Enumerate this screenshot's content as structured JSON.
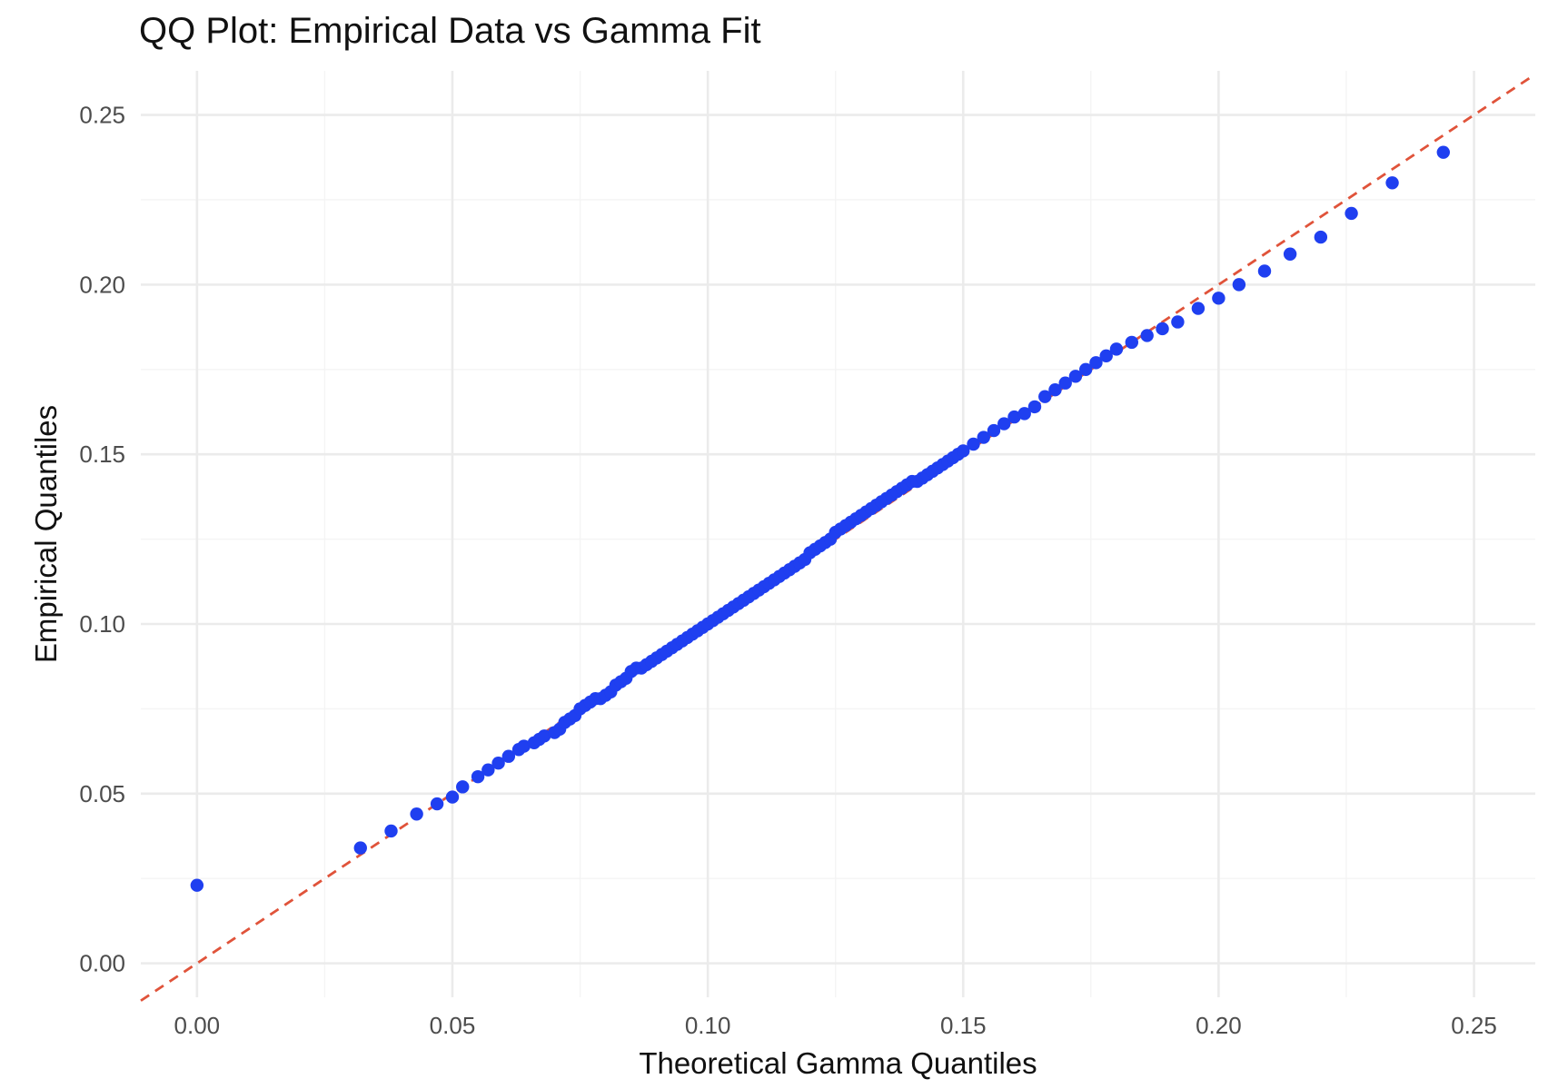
{
  "chart_data": {
    "type": "scatter",
    "title": "QQ Plot: Empirical Data vs Gamma Fit",
    "xlabel": "Theoretical Gamma Quantiles",
    "ylabel": "Empirical Quantiles",
    "xlim": [
      -0.011,
      0.262
    ],
    "ylim": [
      -0.01,
      0.263
    ],
    "xticks": [
      "0.00",
      "0.05",
      "0.10",
      "0.15",
      "0.20",
      "0.25"
    ],
    "yticks": [
      "0.00",
      "0.05",
      "0.10",
      "0.15",
      "0.20",
      "0.25"
    ],
    "grid": true,
    "legend": "none",
    "point_color": "#1f3ff0",
    "reference_line": {
      "style": "dashed",
      "color": "#e0533a",
      "intercept": 0,
      "slope": 1
    },
    "series": [
      {
        "x": [
          0.0,
          0.032,
          0.038,
          0.043,
          0.047,
          0.05,
          0.052,
          0.055,
          0.057,
          0.059,
          0.061,
          0.063,
          0.064,
          0.066,
          0.067,
          0.068,
          0.07,
          0.071,
          0.072,
          0.073,
          0.074,
          0.075,
          0.076,
          0.077,
          0.078,
          0.079,
          0.08,
          0.081,
          0.082,
          0.083,
          0.084,
          0.085,
          0.086,
          0.087,
          0.088,
          0.089,
          0.09,
          0.091,
          0.092,
          0.093,
          0.094,
          0.095,
          0.096,
          0.097,
          0.098,
          0.099,
          0.1,
          0.101,
          0.102,
          0.103,
          0.104,
          0.105,
          0.106,
          0.107,
          0.108,
          0.109,
          0.11,
          0.111,
          0.112,
          0.113,
          0.114,
          0.115,
          0.116,
          0.117,
          0.118,
          0.119,
          0.12,
          0.121,
          0.122,
          0.123,
          0.124,
          0.125,
          0.126,
          0.127,
          0.128,
          0.129,
          0.13,
          0.131,
          0.132,
          0.133,
          0.134,
          0.135,
          0.136,
          0.137,
          0.138,
          0.139,
          0.14,
          0.141,
          0.142,
          0.143,
          0.144,
          0.145,
          0.146,
          0.147,
          0.148,
          0.149,
          0.15,
          0.152,
          0.154,
          0.156,
          0.158,
          0.16,
          0.162,
          0.164,
          0.166,
          0.168,
          0.17,
          0.172,
          0.174,
          0.176,
          0.178,
          0.18,
          0.183,
          0.186,
          0.189,
          0.192,
          0.196,
          0.2,
          0.204,
          0.209,
          0.214,
          0.22,
          0.226,
          0.234,
          0.244
        ],
        "y": [
          0.023,
          0.034,
          0.039,
          0.044,
          0.047,
          0.049,
          0.052,
          0.055,
          0.057,
          0.059,
          0.061,
          0.063,
          0.064,
          0.065,
          0.066,
          0.067,
          0.068,
          0.069,
          0.071,
          0.072,
          0.073,
          0.075,
          0.076,
          0.077,
          0.078,
          0.078,
          0.079,
          0.08,
          0.082,
          0.083,
          0.084,
          0.086,
          0.087,
          0.087,
          0.088,
          0.089,
          0.09,
          0.091,
          0.092,
          0.093,
          0.094,
          0.095,
          0.096,
          0.097,
          0.098,
          0.099,
          0.1,
          0.101,
          0.102,
          0.103,
          0.104,
          0.105,
          0.106,
          0.107,
          0.108,
          0.109,
          0.11,
          0.111,
          0.112,
          0.113,
          0.114,
          0.115,
          0.116,
          0.117,
          0.118,
          0.119,
          0.121,
          0.122,
          0.123,
          0.124,
          0.125,
          0.127,
          0.128,
          0.129,
          0.13,
          0.131,
          0.132,
          0.133,
          0.134,
          0.135,
          0.136,
          0.137,
          0.138,
          0.139,
          0.14,
          0.141,
          0.142,
          0.142,
          0.143,
          0.144,
          0.145,
          0.146,
          0.147,
          0.148,
          0.149,
          0.15,
          0.151,
          0.153,
          0.155,
          0.157,
          0.159,
          0.161,
          0.162,
          0.164,
          0.167,
          0.169,
          0.171,
          0.173,
          0.175,
          0.177,
          0.179,
          0.181,
          0.183,
          0.185,
          0.187,
          0.189,
          0.193,
          0.196,
          0.2,
          0.204,
          0.209,
          0.214,
          0.221,
          0.23,
          0.239
        ]
      }
    ]
  }
}
